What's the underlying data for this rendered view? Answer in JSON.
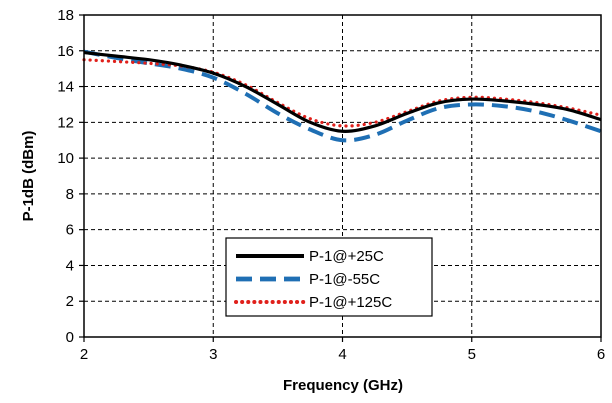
{
  "chart_data": {
    "type": "line",
    "title": "",
    "xlabel": "Frequency (GHz)",
    "ylabel": "P-1dB (dBm)",
    "xlim": [
      2,
      6
    ],
    "ylim": [
      0,
      18
    ],
    "xticks": [
      2,
      3,
      4,
      5,
      6
    ],
    "yticks": [
      0,
      2,
      4,
      6,
      8,
      10,
      12,
      14,
      16,
      18
    ],
    "xtick_labels": [
      "2",
      "3",
      "4",
      "5",
      "6"
    ],
    "ytick_labels": [
      "0",
      "2",
      "4",
      "6",
      "8",
      "10",
      "12",
      "14",
      "16",
      "18"
    ],
    "grid": "dashed major gridlines",
    "legend_position": "lower-center",
    "series": [
      {
        "name": "P-1@+25C",
        "color": "#000000",
        "style": "solid",
        "x": [
          2.0,
          2.25,
          2.5,
          2.75,
          3.0,
          3.25,
          3.5,
          3.75,
          4.0,
          4.25,
          4.5,
          4.75,
          5.0,
          5.25,
          5.5,
          5.75,
          6.0
        ],
        "y": [
          15.9,
          15.7,
          15.5,
          15.2,
          14.75,
          14.0,
          13.0,
          12.0,
          11.5,
          11.8,
          12.5,
          13.1,
          13.3,
          13.2,
          13.0,
          12.7,
          12.15
        ]
      },
      {
        "name": "P-1@-55C",
        "color": "#1f6fb4",
        "style": "dashed",
        "x": [
          2.0,
          2.25,
          2.5,
          2.75,
          3.0,
          3.25,
          3.5,
          3.75,
          4.0,
          4.25,
          4.5,
          4.75,
          5.0,
          5.25,
          5.5,
          5.75,
          6.0
        ],
        "y": [
          15.95,
          15.6,
          15.3,
          15.0,
          14.5,
          13.6,
          12.5,
          11.6,
          11.0,
          11.3,
          12.1,
          12.8,
          13.0,
          12.9,
          12.6,
          12.1,
          11.5
        ]
      },
      {
        "name": "P-1@+125C",
        "color": "#e0201b",
        "style": "dotted",
        "x": [
          2.0,
          2.25,
          2.5,
          2.75,
          3.0,
          3.25,
          3.5,
          3.75,
          4.0,
          4.25,
          4.5,
          4.75,
          5.0,
          5.25,
          5.5,
          5.75,
          6.0
        ],
        "y": [
          15.5,
          15.4,
          15.3,
          15.15,
          14.8,
          14.1,
          13.1,
          12.2,
          11.8,
          12.0,
          12.6,
          13.2,
          13.4,
          13.3,
          13.1,
          12.8,
          12.4
        ]
      }
    ]
  }
}
